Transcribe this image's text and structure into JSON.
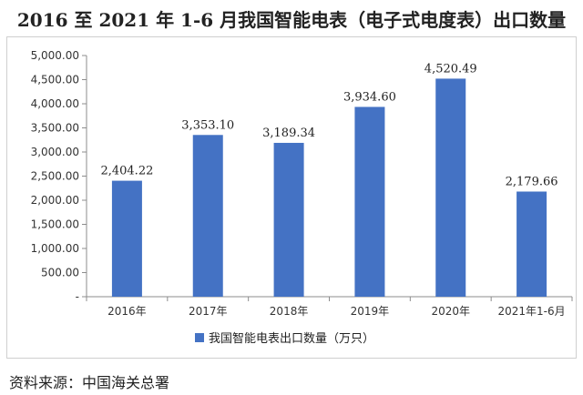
{
  "chart_data": {
    "type": "bar",
    "title": "2016 至 2021 年 1-6 月我国智能电表（电子式电度表）出口数量",
    "categories": [
      "2016年",
      "2017年",
      "2018年",
      "2019年",
      "2020年",
      "2021年1-6月"
    ],
    "series": [
      {
        "name": "我国智能电表出口数量（万只）",
        "values": [
          2404.22,
          3353.1,
          3189.34,
          3934.6,
          4520.49,
          2179.66
        ],
        "labels": [
          "2,404.22",
          "3,353.10",
          "3,189.34",
          "3,934.60",
          "4,520.49",
          "2,179.66"
        ]
      }
    ],
    "ylim": [
      0,
      5000
    ],
    "yticks": [
      "-",
      "500.00",
      "1,000.00",
      "1,500.00",
      "2,000.00",
      "2,500.00",
      "3,000.00",
      "3,500.00",
      "4,000.00",
      "4,500.00",
      "5,000.00"
    ],
    "xlabel": "",
    "ylabel": "",
    "grid": false,
    "legend": "bottom-center",
    "bar_color": "#4472C4"
  },
  "source": "资料来源：中国海关总署"
}
